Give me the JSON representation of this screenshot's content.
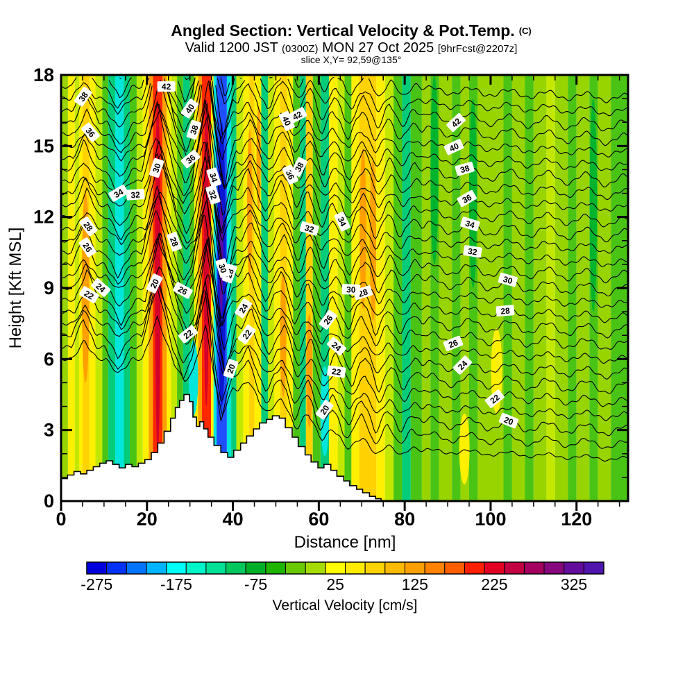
{
  "chart_data": {
    "type": "heatmap",
    "description": "Filled-contour vertical cross section of vertical velocity with overlaid potential temperature isolines and terrain silhouette",
    "title": {
      "main": "Angled Section: Vertical Velocity & Pot.Temp.",
      "suffix": "(C)"
    },
    "subtitle": {
      "p1": "Valid 1200 JST ",
      "p2": "(0300Z)",
      "p3": " MON 27 Oct 2025 ",
      "p4": "[9hrFcst@2207z]"
    },
    "slice_line": "slice X,Y= 92,59@135°",
    "axes": {
      "x": {
        "label": "Distance [nm]",
        "range": [
          0,
          132
        ],
        "major_ticks": [
          0,
          20,
          40,
          60,
          80,
          100,
          120
        ],
        "minor_step": 5
      },
      "y": {
        "label": "Height [Kft MSL]",
        "range": [
          0,
          18
        ],
        "major_ticks": [
          0,
          3,
          6,
          9,
          12,
          15,
          18
        ],
        "minor_step": 1
      }
    },
    "colorbar": {
      "title": "Vertical Velocity [cm/s]",
      "tick_values": [
        -275,
        -175,
        -75,
        25,
        125,
        225,
        325
      ],
      "tick_cell_index": [
        0,
        4,
        8,
        12,
        16,
        20,
        24
      ],
      "cell_values": [
        -275,
        -250,
        -225,
        -200,
        -175,
        -150,
        -125,
        -100,
        -75,
        -50,
        -25,
        0,
        25,
        50,
        75,
        100,
        125,
        150,
        175,
        200,
        225,
        250,
        275,
        300,
        325,
        350
      ],
      "cell_colors": [
        "#0000DC",
        "#0032F5",
        "#0073FF",
        "#00B4FF",
        "#00FFFF",
        "#00F5C8",
        "#00E196",
        "#00C85F",
        "#00AF28",
        "#1EB400",
        "#69C800",
        "#A5DC00",
        "#FFFF00",
        "#FFEB00",
        "#FFD200",
        "#FFB900",
        "#FFA000",
        "#FF8200",
        "#FF5F00",
        "#FF1E00",
        "#E10023",
        "#C30041",
        "#A5005F",
        "#87087D",
        "#640C9B",
        "#5014AF"
      ]
    },
    "shading": {
      "palette": {
        "Y": "#FFF000",
        "YG": "#C3E800",
        "LG": "#97D400",
        "MG": "#4AC414",
        "DG": "#00B42D",
        "TL": "#00CC7A",
        "CY": "#00E6DC",
        "LB": "#00AEFF",
        "BL": "#1E50FF",
        "NV": "#0A16D2",
        "PU": "#5A0AA0",
        "GO": "#FFD200",
        "OR": "#FFA000",
        "DO": "#FF7000",
        "RD": "#FF2800",
        "DR": "#D20028"
      },
      "stripes": [
        [
          0,
          1.6,
          "LG"
        ],
        [
          1.6,
          3.2,
          "Y"
        ],
        [
          3.2,
          4.2,
          "YG"
        ],
        [
          4.2,
          5.0,
          "Y"
        ],
        [
          5.0,
          6.6,
          "GO"
        ],
        [
          6.6,
          8.0,
          "Y"
        ],
        [
          8.0,
          9.6,
          "YG"
        ],
        [
          9.6,
          11.0,
          "MG"
        ],
        [
          11.0,
          12.6,
          "TL"
        ],
        [
          12.6,
          14.6,
          "CY"
        ],
        [
          14.6,
          16.0,
          "TL"
        ],
        [
          16.0,
          17.6,
          "MG"
        ],
        [
          17.6,
          19.0,
          "YG"
        ],
        [
          19.0,
          20.4,
          "Y"
        ],
        [
          20.4,
          21.4,
          "OR"
        ],
        [
          21.4,
          23.6,
          "RD"
        ],
        [
          23.6,
          24.6,
          "OR"
        ],
        [
          24.6,
          25.6,
          "Y"
        ],
        [
          25.6,
          27.0,
          "YG"
        ],
        [
          27.0,
          28.4,
          "MG"
        ],
        [
          28.4,
          30.0,
          "TL"
        ],
        [
          30.0,
          31.0,
          "MG"
        ],
        [
          31.0,
          31.9,
          "Y"
        ],
        [
          31.9,
          32.8,
          "OR"
        ],
        [
          32.8,
          34.9,
          "RD"
        ],
        [
          34.9,
          35.5,
          "Y"
        ],
        [
          35.5,
          36.2,
          "CY"
        ],
        [
          36.2,
          38.6,
          "BL"
        ],
        [
          38.6,
          39.6,
          "CY"
        ],
        [
          39.6,
          40.8,
          "TL"
        ],
        [
          40.8,
          42.4,
          "YG"
        ],
        [
          42.4,
          43.8,
          "Y"
        ],
        [
          43.8,
          45.0,
          "GO"
        ],
        [
          45.0,
          46.6,
          "Y"
        ],
        [
          46.6,
          48.2,
          "TL"
        ],
        [
          48.2,
          49.6,
          "YG"
        ],
        [
          49.6,
          51.0,
          "Y"
        ],
        [
          51.0,
          52.6,
          "GO"
        ],
        [
          52.6,
          54.0,
          "Y"
        ],
        [
          54.0,
          55.6,
          "MG"
        ],
        [
          55.6,
          57.0,
          "TL"
        ],
        [
          57.0,
          58.6,
          "GO"
        ],
        [
          58.6,
          60.4,
          "MG"
        ],
        [
          60.4,
          62.4,
          "TL"
        ],
        [
          62.4,
          64.4,
          "Y"
        ],
        [
          64.4,
          66.0,
          "YG"
        ],
        [
          66.0,
          67.6,
          "MG"
        ],
        [
          67.6,
          69.4,
          "Y"
        ],
        [
          69.4,
          73.4,
          "GO"
        ],
        [
          73.4,
          75.4,
          "Y"
        ],
        [
          75.4,
          77.4,
          "YG"
        ],
        [
          77.4,
          79.4,
          "MG"
        ],
        [
          79.4,
          81.4,
          "TL"
        ],
        [
          81.4,
          84.0,
          "MG"
        ],
        [
          84.0,
          86.0,
          "LG"
        ],
        [
          86.0,
          88.0,
          "MG"
        ],
        [
          88.0,
          91.0,
          "LG"
        ],
        [
          91.0,
          93.0,
          "MG"
        ],
        [
          93.0,
          95.0,
          "LG"
        ],
        [
          95.0,
          97.0,
          "MG"
        ],
        [
          97.0,
          103.0,
          "LG"
        ],
        [
          103.0,
          105.0,
          "MG"
        ],
        [
          105.0,
          108.0,
          "LG"
        ],
        [
          108.0,
          110.0,
          "MG"
        ],
        [
          110.0,
          113.0,
          "LG"
        ],
        [
          113.0,
          115.0,
          "YG"
        ],
        [
          115.0,
          118.0,
          "LG"
        ],
        [
          118.0,
          120.0,
          "MG"
        ],
        [
          120.0,
          123.0,
          "LG"
        ],
        [
          123.0,
          125.0,
          "MG"
        ],
        [
          125.0,
          128.0,
          "LG"
        ],
        [
          128.0,
          132.0,
          "MG"
        ]
      ],
      "patches": [
        {
          "d": 5.7,
          "z": 9.0,
          "rx": 0.9,
          "rz": 4.0,
          "c": "OR"
        },
        {
          "d": 22.5,
          "z": 9.5,
          "rx": 0.62,
          "rz": 7.5,
          "c": "DR"
        },
        {
          "d": 33.8,
          "z": 10.5,
          "rx": 0.6,
          "rz": 6.5,
          "c": "DR"
        },
        {
          "d": 37.4,
          "z": 10.0,
          "rx": 0.95,
          "rz": 6.0,
          "c": "NV"
        },
        {
          "d": 37.3,
          "z": 10.3,
          "rx": 0.45,
          "rz": 2.4,
          "c": "PU"
        },
        {
          "d": 30.8,
          "z": 5.2,
          "rx": 1.1,
          "rz": 1.6,
          "c": "CY"
        },
        {
          "d": 43.9,
          "z": 12.5,
          "rx": 0.6,
          "rz": 3.2,
          "c": "OR"
        },
        {
          "d": 46.0,
          "z": 14.5,
          "rx": 0.5,
          "rz": 2.2,
          "c": "OR"
        },
        {
          "d": 51.7,
          "z": 7.0,
          "rx": 0.7,
          "rz": 2.6,
          "c": "OR"
        },
        {
          "d": 57.8,
          "z": 5.5,
          "rx": 0.7,
          "rz": 2.4,
          "c": "OR"
        },
        {
          "d": 61.4,
          "z": 3.8,
          "rx": 1.0,
          "rz": 1.9,
          "c": "CY"
        },
        {
          "d": 70.3,
          "z": 11.5,
          "rx": 0.75,
          "rz": 3.4,
          "c": "OR"
        },
        {
          "d": 72.6,
          "z": 11.0,
          "rx": 0.75,
          "rz": 3.4,
          "c": "OR"
        },
        {
          "d": 86.9,
          "z": 14.0,
          "rx": 0.9,
          "rz": 4.0,
          "c": "DG"
        },
        {
          "d": 95.9,
          "z": 13.0,
          "rx": 0.9,
          "rz": 4.0,
          "c": "DG"
        },
        {
          "d": 123.9,
          "z": 12.5,
          "rx": 0.85,
          "rz": 4.5,
          "c": "DG"
        },
        {
          "d": 93.9,
          "z": 2.2,
          "rx": 1.2,
          "rz": 1.5,
          "c": "Y"
        },
        {
          "d": 101.4,
          "z": 5.5,
          "rx": 1.3,
          "rz": 1.8,
          "c": "Y"
        },
        {
          "d": 113.9,
          "z": 9.0,
          "rx": 0.8,
          "rz": 3.0,
          "c": "YG"
        }
      ]
    },
    "terrain": {
      "points": [
        [
          0,
          0.95
        ],
        [
          1.5,
          1.1
        ],
        [
          3,
          1.25
        ],
        [
          4.5,
          1.15
        ],
        [
          6,
          1.3
        ],
        [
          7.5,
          1.45
        ],
        [
          9,
          1.6
        ],
        [
          10.5,
          1.7
        ],
        [
          12,
          1.55
        ],
        [
          13.5,
          1.4
        ],
        [
          15,
          1.55
        ],
        [
          16.5,
          1.45
        ],
        [
          18,
          1.6
        ],
        [
          19.5,
          1.75
        ],
        [
          21,
          2.05
        ],
        [
          22.5,
          2.45
        ],
        [
          24,
          2.95
        ],
        [
          25.5,
          3.5
        ],
        [
          26.6,
          3.95
        ],
        [
          27.6,
          4.25
        ],
        [
          28.6,
          4.5
        ],
        [
          29.9,
          4.2
        ],
        [
          30.7,
          3.55
        ],
        [
          31.5,
          3.15
        ],
        [
          32.3,
          3.35
        ],
        [
          33.2,
          3.05
        ],
        [
          34.2,
          2.7
        ],
        [
          35.6,
          2.35
        ],
        [
          37.2,
          2.05
        ],
        [
          38.8,
          1.85
        ],
        [
          40.2,
          2.15
        ],
        [
          41.8,
          2.45
        ],
        [
          43.2,
          2.75
        ],
        [
          44.8,
          3.05
        ],
        [
          46.2,
          3.3
        ],
        [
          47.8,
          3.45
        ],
        [
          49.2,
          3.6
        ],
        [
          50.8,
          3.5
        ],
        [
          52.2,
          3.1
        ],
        [
          53.8,
          2.7
        ],
        [
          55.2,
          2.3
        ],
        [
          56.8,
          1.95
        ],
        [
          58.2,
          1.65
        ],
        [
          59.8,
          1.4
        ],
        [
          61.2,
          1.55
        ],
        [
          62.8,
          1.3
        ],
        [
          64.2,
          1.05
        ],
        [
          65.8,
          0.85
        ],
        [
          67.2,
          0.65
        ],
        [
          68.8,
          0.5
        ],
        [
          70.2,
          0.35
        ],
        [
          71.8,
          0.2
        ],
        [
          73.2,
          0.1
        ],
        [
          74.5,
          0
        ]
      ]
    },
    "isentropes": {
      "unit": "C",
      "levels_min": 18,
      "levels_max": 44,
      "level_step": 1,
      "base": {
        "left_z20": 7.0,
        "left_slope": 0.5,
        "right_z20": 3.3,
        "right_slope_low": 0.6,
        "right_z26": 6.9,
        "right_slope_high": 0.58
      },
      "waves": [
        {
          "c": 5.6,
          "a": 1.15,
          "wl": 2.8,
          "wr": 3.0
        },
        {
          "c": 13.6,
          "a": -0.95,
          "wl": 3.0,
          "wr": 3.2
        },
        {
          "c": 22.6,
          "a": 2.7,
          "wl": 3.4,
          "wr": 4.0
        },
        {
          "c": 28.9,
          "a": -0.95,
          "wl": 2.2,
          "wr": 2.2
        },
        {
          "c": 33.9,
          "a": 3.1,
          "wl": 2.9,
          "wr": 2.1
        },
        {
          "c": 37.7,
          "a": -2.1,
          "wl": 1.9,
          "wr": 2.6
        },
        {
          "c": 43.9,
          "a": 0.95,
          "wl": 2.4,
          "wr": 2.4
        },
        {
          "c": 48.0,
          "a": -0.5,
          "wl": 2.0,
          "wr": 2.0
        },
        {
          "c": 51.6,
          "a": 0.85,
          "wl": 2.8,
          "wr": 2.8
        },
        {
          "c": 54.8,
          "a": -0.5,
          "wl": 2.0,
          "wr": 2.0
        },
        {
          "c": 57.8,
          "a": 0.8,
          "wl": 2.4,
          "wr": 2.4
        },
        {
          "c": 60.9,
          "a": -0.45,
          "wl": 2.0,
          "wr": 2.0
        },
        {
          "c": 63.6,
          "a": 0.6,
          "wl": 2.4,
          "wr": 2.4
        },
        {
          "c": 67.1,
          "a": -0.45,
          "wl": 2.0,
          "wr": 2.0
        },
        {
          "c": 70.4,
          "a": 0.8,
          "wl": 2.8,
          "wr": 2.8
        },
        {
          "c": 73.6,
          "a": -0.45,
          "wl": 2.0,
          "wr": 2.0
        },
        {
          "c": 76.4,
          "a": 0.55,
          "wl": 2.4,
          "wr": 2.4
        },
        {
          "c": 79.4,
          "a": -0.35,
          "wl": 2.0,
          "wr": 2.0
        },
        {
          "c": 82.2,
          "a": 0.35,
          "wl": 2.4,
          "wr": 2.4
        }
      ],
      "label_positions": {
        "42": [
          24.5,
          55,
          92
        ],
        "40": [
          30,
          52.5,
          91.5
        ],
        "38": [
          5.2,
          31,
          55.5,
          94
        ],
        "36": [
          6.8,
          30.2,
          53.3,
          94.5
        ],
        "34": [
          13.4,
          35.5,
          65.4,
          95.2
        ],
        "32": [
          17.3,
          35.3,
          57.8,
          95.8
        ],
        "30": [
          22.3,
          37.6,
          67.5,
          104
        ],
        "28": [
          6.3,
          26.3,
          39.3,
          70.3,
          103.4
        ],
        "26": [
          6.1,
          28.3,
          62.2,
          91.3
        ],
        "24": [
          9.2,
          42.5,
          64.1,
          93.5
        ],
        "22": [
          6.5,
          29.6,
          43.3,
          64.1,
          101
        ],
        "20": [
          21.8,
          39.6,
          61.4,
          104.2
        ]
      }
    }
  }
}
